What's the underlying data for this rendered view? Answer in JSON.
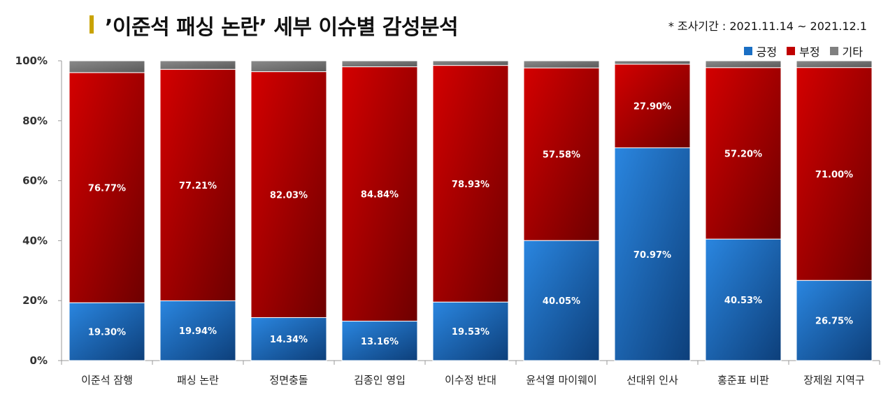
{
  "header": {
    "title": "’이준석 패싱 논란’ 세부 이슈별 감성분석",
    "period": "* 조사기간 : 2021.11.14 ~ 2021.12.1"
  },
  "colors": {
    "title_bar": "#c9a300",
    "positive": "#1a6fc4",
    "negative": "#c00000",
    "other": "#808080"
  },
  "chart_data": {
    "type": "bar",
    "stacked": true,
    "title": "’이준석 패싱 논란’ 세부 이슈별 감성분석",
    "categories": [
      "이준석 잠행",
      "패싱 논란",
      "정면충돌",
      "김종인 영입",
      "이수정 반대",
      "윤석열 마이웨이",
      "선대위 인사",
      "홍준표 비판",
      "장제원 지역구"
    ],
    "series": [
      {
        "name": "긍정",
        "values": [
          19.3,
          19.94,
          14.34,
          13.16,
          19.53,
          40.05,
          70.97,
          40.53,
          26.75
        ],
        "labels": [
          "19.30%",
          "19.94%",
          "14.34%",
          "13.16%",
          "19.53%",
          "40.05%",
          "70.97%",
          "40.53%",
          "26.75%"
        ]
      },
      {
        "name": "부정",
        "values": [
          76.77,
          77.21,
          82.03,
          84.84,
          78.93,
          57.58,
          27.9,
          57.2,
          71.0
        ],
        "labels": [
          "76.77%",
          "77.21%",
          "82.03%",
          "84.84%",
          "78.93%",
          "57.58%",
          "27.90%",
          "57.20%",
          "71.00%"
        ]
      },
      {
        "name": "기타",
        "values": [
          3.93,
          2.85,
          3.63,
          2.0,
          1.54,
          2.37,
          1.13,
          2.27,
          2.25
        ]
      }
    ],
    "yticks": [
      "0%",
      "20%",
      "40%",
      "60%",
      "80%",
      "100%"
    ],
    "ylim": [
      0,
      100
    ],
    "xlabel": "",
    "ylabel": "",
    "legend": "top-right",
    "grid": false
  }
}
